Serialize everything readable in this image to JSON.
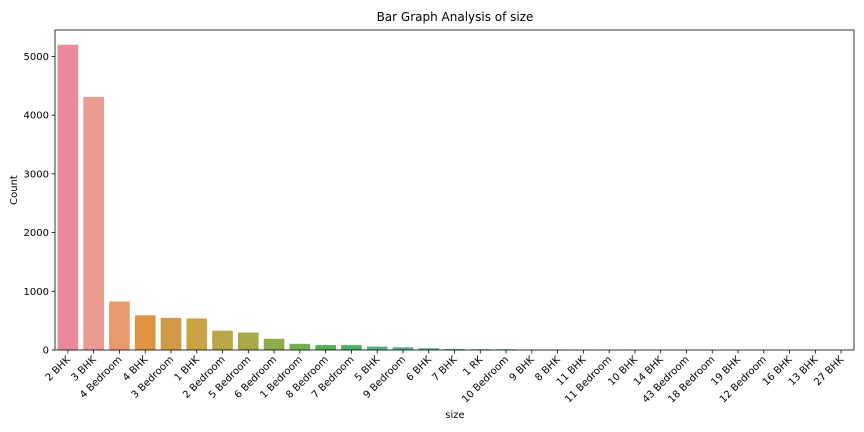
{
  "chart_data": {
    "type": "bar",
    "title": "Bar Graph Analysis of size",
    "xlabel": "size",
    "ylabel": "Count",
    "ylim": [
      0,
      5450
    ],
    "yticks": [
      0,
      1000,
      2000,
      3000,
      4000,
      5000
    ],
    "grid": false,
    "categories": [
      "2 BHK",
      "3 BHK",
      "4 Bedroom",
      "4 BHK",
      "3 Bedroom",
      "1 BHK",
      "2 Bedroom",
      "5 Bedroom",
      "6 Bedroom",
      "1 Bedroom",
      "8 Bedroom",
      "7 Bedroom",
      "5 BHK",
      "9 Bedroom",
      "6 BHK",
      "7 BHK",
      "1 RK",
      "10 Bedroom",
      "9 BHK",
      "8 BHK",
      "11 BHK",
      "11 Bedroom",
      "10 BHK",
      "14 BHK",
      "43 Bedroom",
      "18 Bedroom",
      "19 BHK",
      "12 Bedroom",
      "16 BHK",
      "13 BHK",
      "27 BHK"
    ],
    "values": [
      5199,
      4310,
      826,
      591,
      547,
      538,
      329,
      297,
      191,
      105,
      84,
      83,
      59,
      46,
      30,
      17,
      13,
      12,
      8,
      5,
      2,
      2,
      2,
      1,
      1,
      1,
      1,
      1,
      1,
      1,
      1
    ],
    "colors": [
      "#ec8a9b",
      "#eb9a8f",
      "#e89a6c",
      "#df9342",
      "#d09a45",
      "#c9a344",
      "#b6a646",
      "#a7a948",
      "#8fac4c",
      "#6fb24d",
      "#52b352",
      "#4eb16a",
      "#50b283",
      "#50b090",
      "#52b09b",
      "#54b0a6",
      "#55b2b2",
      "#57b1bd",
      "#59b3c8",
      "#5cb3d6",
      "#63afe2",
      "#78a6e8",
      "#8f9ef0",
      "#a697f4",
      "#ba8ef3",
      "#cd84ee",
      "#e07ae4",
      "#e97dd2",
      "#ec82c0",
      "#ed87b0",
      "#ec8ba2"
    ]
  }
}
